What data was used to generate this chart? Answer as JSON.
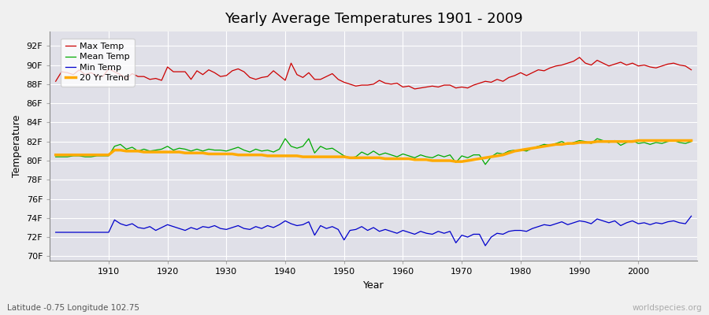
{
  "title": "Yearly Average Temperatures 1901 - 2009",
  "xlabel": "Year",
  "ylabel": "Temperature",
  "x_start": 1901,
  "x_end": 2009,
  "y_ticks": [
    "70F",
    "72F",
    "74F",
    "76F",
    "78F",
    "80F",
    "82F",
    "84F",
    "86F",
    "88F",
    "90F",
    "92F"
  ],
  "y_values": [
    70,
    72,
    74,
    76,
    78,
    80,
    82,
    84,
    86,
    88,
    90,
    92
  ],
  "ylim": [
    69.5,
    93.5
  ],
  "xlim": [
    1900,
    2010
  ],
  "legend_entries": [
    "Max Temp",
    "Mean Temp",
    "Min Temp",
    "20 Yr Trend"
  ],
  "legend_colors": [
    "#cc0000",
    "#00aa00",
    "#0000cc",
    "#ffaa00"
  ],
  "bg_color": "#f0f0f0",
  "plot_bg_color": "#e0e0e8",
  "grid_color": "#ffffff",
  "subtitle_left": "Latitude -0.75 Longitude 102.75",
  "subtitle_right": "worldspecies.org",
  "max_temp": [
    88.3,
    89.3,
    89.2,
    89.0,
    89.5,
    89.0,
    89.2,
    88.9,
    88.8,
    89.6,
    89.3,
    89.0,
    88.6,
    89.1,
    88.8,
    88.8,
    88.5,
    88.6,
    88.4,
    89.8,
    89.3,
    89.3,
    89.3,
    88.5,
    89.4,
    89.0,
    89.5,
    89.2,
    88.8,
    88.9,
    89.4,
    89.6,
    89.3,
    88.7,
    88.5,
    88.7,
    88.8,
    89.4,
    88.9,
    88.4,
    90.2,
    89.0,
    88.7,
    89.2,
    88.5,
    88.5,
    88.8,
    89.1,
    88.5,
    88.2,
    88.0,
    87.8,
    87.9,
    87.9,
    88.0,
    88.4,
    88.1,
    88.0,
    88.1,
    87.7,
    87.8,
    87.5,
    87.6,
    87.7,
    87.8,
    87.7,
    87.9,
    87.9,
    87.6,
    87.7,
    87.6,
    87.9,
    88.1,
    88.3,
    88.2,
    88.5,
    88.3,
    88.7,
    88.9,
    89.2,
    88.9,
    89.2,
    89.5,
    89.4,
    89.7,
    89.9,
    90.0,
    90.2,
    90.4,
    90.8,
    90.2,
    90.0,
    90.5,
    90.2,
    89.9,
    90.1,
    90.3,
    90.0,
    90.2,
    89.9,
    90.0,
    89.8,
    89.7,
    89.9,
    90.1,
    90.2,
    90.0,
    89.9,
    89.5
  ],
  "mean_temp": [
    80.4,
    80.4,
    80.4,
    80.5,
    80.5,
    80.4,
    80.4,
    80.5,
    80.5,
    80.5,
    81.5,
    81.7,
    81.2,
    81.4,
    81.0,
    81.2,
    81.0,
    81.1,
    81.2,
    81.5,
    81.1,
    81.3,
    81.2,
    81.0,
    81.2,
    81.0,
    81.2,
    81.1,
    81.1,
    81.0,
    81.2,
    81.4,
    81.1,
    80.9,
    81.2,
    81.0,
    81.1,
    80.9,
    81.2,
    82.3,
    81.5,
    81.3,
    81.5,
    82.3,
    80.8,
    81.5,
    81.2,
    81.3,
    80.9,
    80.5,
    80.3,
    80.4,
    80.9,
    80.6,
    81.0,
    80.6,
    80.8,
    80.6,
    80.4,
    80.7,
    80.5,
    80.3,
    80.6,
    80.4,
    80.3,
    80.6,
    80.4,
    80.6,
    79.8,
    80.5,
    80.3,
    80.6,
    80.6,
    79.6,
    80.4,
    80.8,
    80.7,
    81.0,
    81.1,
    81.1,
    81.0,
    81.3,
    81.5,
    81.7,
    81.6,
    81.8,
    82.0,
    81.7,
    81.9,
    82.1,
    82.0,
    81.8,
    82.3,
    82.1,
    81.9,
    82.1,
    81.6,
    81.9,
    82.1,
    81.8,
    81.9,
    81.7,
    81.9,
    81.8,
    82.0,
    82.1,
    81.9,
    81.8,
    82.0
  ],
  "min_temp": [
    72.5,
    72.5,
    72.5,
    72.5,
    72.5,
    72.5,
    72.5,
    72.5,
    72.5,
    72.5,
    73.8,
    73.4,
    73.2,
    73.4,
    73.0,
    72.9,
    73.1,
    72.7,
    73.0,
    73.3,
    73.1,
    72.9,
    72.7,
    73.0,
    72.8,
    73.1,
    73.0,
    73.2,
    72.9,
    72.8,
    73.0,
    73.2,
    72.9,
    72.8,
    73.1,
    72.9,
    73.2,
    73.0,
    73.3,
    73.7,
    73.4,
    73.2,
    73.3,
    73.6,
    72.2,
    73.2,
    72.9,
    73.1,
    72.8,
    71.7,
    72.7,
    72.8,
    73.1,
    72.7,
    73.0,
    72.6,
    72.8,
    72.6,
    72.4,
    72.7,
    72.5,
    72.3,
    72.6,
    72.4,
    72.3,
    72.6,
    72.4,
    72.6,
    71.4,
    72.2,
    72.0,
    72.3,
    72.3,
    71.1,
    72.0,
    72.4,
    72.3,
    72.6,
    72.7,
    72.7,
    72.6,
    72.9,
    73.1,
    73.3,
    73.2,
    73.4,
    73.6,
    73.3,
    73.5,
    73.7,
    73.6,
    73.4,
    73.9,
    73.7,
    73.5,
    73.7,
    73.2,
    73.5,
    73.7,
    73.4,
    73.5,
    73.3,
    73.5,
    73.4,
    73.6,
    73.7,
    73.5,
    73.4,
    74.2
  ],
  "trend_mean": [
    80.6,
    80.6,
    80.6,
    80.6,
    80.6,
    80.6,
    80.6,
    80.6,
    80.6,
    80.6,
    81.1,
    81.1,
    81.0,
    81.0,
    81.0,
    80.9,
    80.9,
    80.9,
    80.9,
    80.9,
    80.9,
    80.9,
    80.8,
    80.8,
    80.8,
    80.8,
    80.7,
    80.7,
    80.7,
    80.7,
    80.7,
    80.6,
    80.6,
    80.6,
    80.6,
    80.6,
    80.5,
    80.5,
    80.5,
    80.5,
    80.5,
    80.5,
    80.4,
    80.4,
    80.4,
    80.4,
    80.4,
    80.4,
    80.4,
    80.4,
    80.3,
    80.3,
    80.3,
    80.3,
    80.3,
    80.3,
    80.2,
    80.2,
    80.2,
    80.2,
    80.2,
    80.1,
    80.1,
    80.1,
    80.0,
    80.0,
    80.0,
    80.0,
    79.9,
    79.9,
    80.0,
    80.1,
    80.2,
    80.3,
    80.4,
    80.5,
    80.6,
    80.8,
    81.0,
    81.1,
    81.2,
    81.3,
    81.4,
    81.5,
    81.6,
    81.7,
    81.7,
    81.8,
    81.8,
    81.9,
    81.9,
    81.9,
    82.0,
    82.0,
    82.0,
    82.0,
    82.0,
    82.0,
    82.0,
    82.1,
    82.1,
    82.1,
    82.1,
    82.1,
    82.1,
    82.1,
    82.1,
    82.1,
    82.1
  ]
}
